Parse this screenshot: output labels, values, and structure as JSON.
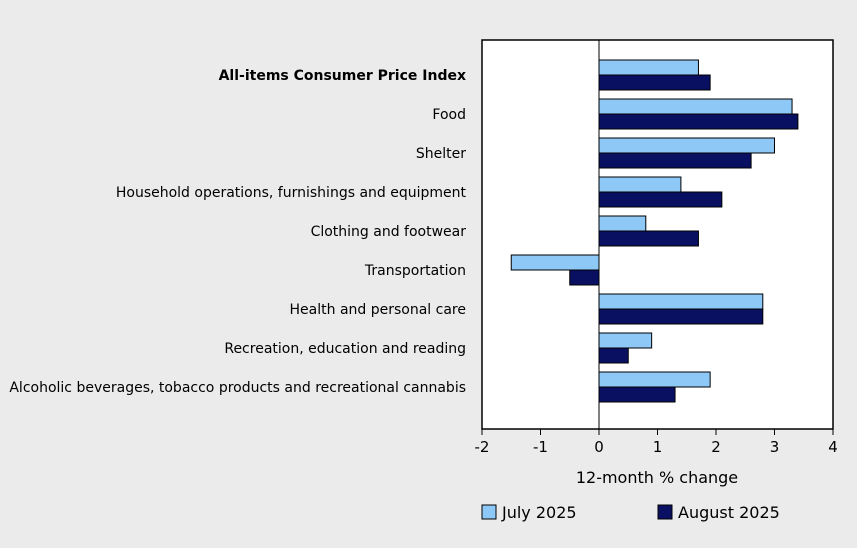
{
  "chart_data": {
    "type": "bar",
    "orientation": "horizontal",
    "categories": [
      "All-items Consumer Price Index",
      "Food",
      "Shelter",
      "Household operations, furnishings and equipment",
      "Clothing and footwear",
      "Transportation",
      "Health and personal care",
      "Recreation, education and reading",
      "Alcoholic beverages, tobacco products and recreational cannabis"
    ],
    "bold_categories": [
      "All-items Consumer Price Index"
    ],
    "series": [
      {
        "name": "July 2025",
        "color": "#8ec8f7",
        "values": [
          1.7,
          3.3,
          3.0,
          1.4,
          0.8,
          -1.5,
          2.8,
          0.9,
          1.9
        ]
      },
      {
        "name": "August 2025",
        "color": "#0a1061",
        "values": [
          1.9,
          3.4,
          2.6,
          2.1,
          1.7,
          -0.5,
          2.8,
          0.5,
          1.3
        ]
      }
    ],
    "xlabel": "12-month % change",
    "xlim": [
      -2,
      4
    ],
    "xticks": [
      "-2",
      "-1",
      "0",
      "1",
      "2",
      "3",
      "4"
    ],
    "grid": false,
    "legend_position": "bottom"
  }
}
